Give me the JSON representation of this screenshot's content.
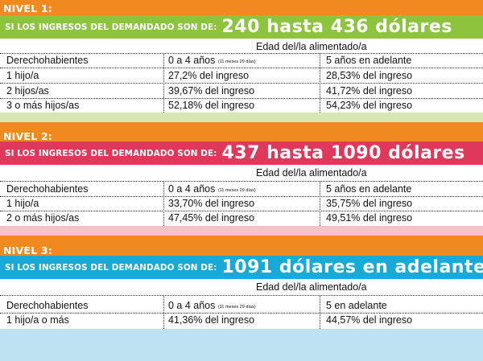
{
  "levels": [
    {
      "tag": "NIVEL 1:",
      "lead": "SI LOS INGRESOS DEL DEMANDADO SON DE:",
      "range": "240 hasta 436 dólares",
      "color": "#8cc43e",
      "stripe_color": "#d6e8b0",
      "age_header": "Edad del/la alimentado/a",
      "col0": "Derechohabientes",
      "col1": "0 a 4 años",
      "col1_note": "(11 meses 29 días)",
      "col2": "5 años en adelante",
      "rows": [
        {
          "label": "1 hijo/a",
          "v1": "27,2% del ingreso",
          "v2": "28,53% del ingreso"
        },
        {
          "label": "2 hijos/as",
          "v1": "39,67% del ingreso",
          "v2": "41,72% del ingreso"
        },
        {
          "label": "3 o más hijos/as",
          "v1": "52,18% del ingreso",
          "v2": "54,23% del ingreso"
        }
      ]
    },
    {
      "tag": "NIVEL 2:",
      "lead": "SI LOS INGRESOS DEL DEMANDADO SON DE:",
      "range": "437 hasta 1090 dólares",
      "color": "#e0385a",
      "stripe_color": "#f6c3c8",
      "age_header": "Edad del/la alimentado/a",
      "col0": "Derechohabientes",
      "col1": "0 a 4 años",
      "col1_note": "(11 meses 29 días)",
      "col2": "5 años en adelante",
      "rows": [
        {
          "label": "1 hijo/a",
          "v1": "33,70% del ingreso",
          "v2": "35,75% del ingreso"
        },
        {
          "label": "2 o más hijos/as",
          "v1": "47,45% del ingreso",
          "v2": "49,51% del ingreso"
        }
      ]
    },
    {
      "tag": "NIVEL 3:",
      "lead": "SI LOS INGRESOS DEL DEMANDADO SON DE:",
      "range": "1091 dólares en adelante",
      "color": "#17aad8",
      "stripe_color": "#bfe2f2",
      "age_header": "Edad del/la alimentado/a",
      "col0": "Derechohabientes",
      "col1": "0 a 4 años",
      "col1_note": "(11 meses 29 días)",
      "col2": "5 en adelante",
      "rows": [
        {
          "label": "1 hijo/a o más",
          "v1": "41,36% del ingreso",
          "v2": "44,57% del ingreso"
        }
      ]
    }
  ]
}
